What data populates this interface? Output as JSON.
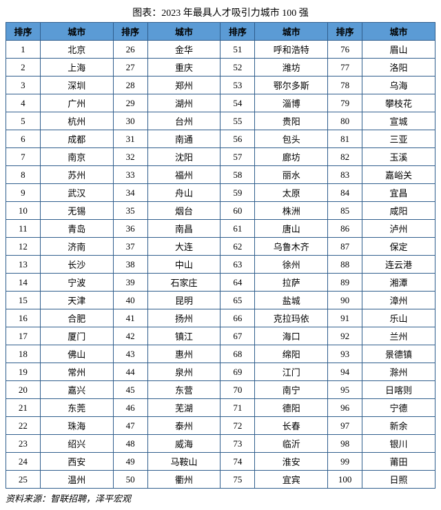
{
  "title": "图表：2023 年最具人才吸引力城市 100 强",
  "source": "资料来源：智联招聘，泽平宏观",
  "header": {
    "rank": "排序",
    "city": "城市"
  },
  "style": {
    "header_bg": "#5b9bd5",
    "border_color": "#2e5d8c",
    "background": "#ffffff",
    "font_family": "SimSun",
    "title_fontsize": 14,
    "cell_fontsize": 13
  },
  "rows": [
    {
      "r1": "1",
      "c1": "北京",
      "r2": "26",
      "c2": "金华",
      "r3": "51",
      "c3": "呼和浩特",
      "r4": "76",
      "c4": "眉山"
    },
    {
      "r1": "2",
      "c1": "上海",
      "r2": "27",
      "c2": "重庆",
      "r3": "52",
      "c3": "潍坊",
      "r4": "77",
      "c4": "洛阳"
    },
    {
      "r1": "3",
      "c1": "深圳",
      "r2": "28",
      "c2": "郑州",
      "r3": "53",
      "c3": "鄂尔多斯",
      "r4": "78",
      "c4": "乌海"
    },
    {
      "r1": "4",
      "c1": "广州",
      "r2": "29",
      "c2": "湖州",
      "r3": "54",
      "c3": "淄博",
      "r4": "79",
      "c4": "攀枝花"
    },
    {
      "r1": "5",
      "c1": "杭州",
      "r2": "30",
      "c2": "台州",
      "r3": "55",
      "c3": "贵阳",
      "r4": "80",
      "c4": "宣城"
    },
    {
      "r1": "6",
      "c1": "成都",
      "r2": "31",
      "c2": "南通",
      "r3": "56",
      "c3": "包头",
      "r4": "81",
      "c4": "三亚"
    },
    {
      "r1": "7",
      "c1": "南京",
      "r2": "32",
      "c2": "沈阳",
      "r3": "57",
      "c3": "廊坊",
      "r4": "82",
      "c4": "玉溪"
    },
    {
      "r1": "8",
      "c1": "苏州",
      "r2": "33",
      "c2": "福州",
      "r3": "58",
      "c3": "丽水",
      "r4": "83",
      "c4": "嘉峪关"
    },
    {
      "r1": "9",
      "c1": "武汉",
      "r2": "34",
      "c2": "舟山",
      "r3": "59",
      "c3": "太原",
      "r4": "84",
      "c4": "宜昌"
    },
    {
      "r1": "10",
      "c1": "无锡",
      "r2": "35",
      "c2": "烟台",
      "r3": "60",
      "c3": "株洲",
      "r4": "85",
      "c4": "咸阳"
    },
    {
      "r1": "11",
      "c1": "青岛",
      "r2": "36",
      "c2": "南昌",
      "r3": "61",
      "c3": "唐山",
      "r4": "86",
      "c4": "泸州"
    },
    {
      "r1": "12",
      "c1": "济南",
      "r2": "37",
      "c2": "大连",
      "r3": "62",
      "c3": "乌鲁木齐",
      "r4": "87",
      "c4": "保定"
    },
    {
      "r1": "13",
      "c1": "长沙",
      "r2": "38",
      "c2": "中山",
      "r3": "63",
      "c3": "徐州",
      "r4": "88",
      "c4": "连云港"
    },
    {
      "r1": "14",
      "c1": "宁波",
      "r2": "39",
      "c2": "石家庄",
      "r3": "64",
      "c3": "拉萨",
      "r4": "89",
      "c4": "湘潭"
    },
    {
      "r1": "15",
      "c1": "天津",
      "r2": "40",
      "c2": "昆明",
      "r3": "65",
      "c3": "盐城",
      "r4": "90",
      "c4": "漳州"
    },
    {
      "r1": "16",
      "c1": "合肥",
      "r2": "41",
      "c2": "扬州",
      "r3": "66",
      "c3": "克拉玛依",
      "r4": "91",
      "c4": "乐山"
    },
    {
      "r1": "17",
      "c1": "厦门",
      "r2": "42",
      "c2": "镇江",
      "r3": "67",
      "c3": "海口",
      "r4": "92",
      "c4": "兰州"
    },
    {
      "r1": "18",
      "c1": "佛山",
      "r2": "43",
      "c2": "惠州",
      "r3": "68",
      "c3": "绵阳",
      "r4": "93",
      "c4": "景德镇"
    },
    {
      "r1": "19",
      "c1": "常州",
      "r2": "44",
      "c2": "泉州",
      "r3": "69",
      "c3": "江门",
      "r4": "94",
      "c4": "滁州"
    },
    {
      "r1": "20",
      "c1": "嘉兴",
      "r2": "45",
      "c2": "东营",
      "r3": "70",
      "c3": "南宁",
      "r4": "95",
      "c4": "日喀则"
    },
    {
      "r1": "21",
      "c1": "东莞",
      "r2": "46",
      "c2": "芜湖",
      "r3": "71",
      "c3": "德阳",
      "r4": "96",
      "c4": "宁德"
    },
    {
      "r1": "22",
      "c1": "珠海",
      "r2": "47",
      "c2": "泰州",
      "r3": "72",
      "c3": "长春",
      "r4": "97",
      "c4": "新余"
    },
    {
      "r1": "23",
      "c1": "绍兴",
      "r2": "48",
      "c2": "威海",
      "r3": "73",
      "c3": "临沂",
      "r4": "98",
      "c4": "银川"
    },
    {
      "r1": "24",
      "c1": "西安",
      "r2": "49",
      "c2": "马鞍山",
      "r3": "74",
      "c3": "淮安",
      "r4": "99",
      "c4": "莆田"
    },
    {
      "r1": "25",
      "c1": "温州",
      "r2": "50",
      "c2": "衢州",
      "r3": "75",
      "c3": "宜宾",
      "r4": "100",
      "c4": "日照"
    }
  ]
}
